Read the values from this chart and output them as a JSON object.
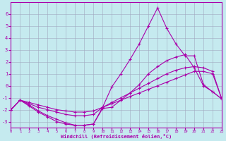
{
  "title": "",
  "xlabel": "Windchill (Refroidissement éolien,°C)",
  "ylabel": "",
  "bg_color": "#c5eaef",
  "grid_color": "#a0a8c0",
  "line_color": "#aa00aa",
  "xlim": [
    0,
    23
  ],
  "ylim": [
    -3.5,
    7.0
  ],
  "xticks": [
    0,
    1,
    2,
    3,
    4,
    5,
    6,
    7,
    8,
    9,
    10,
    11,
    12,
    13,
    14,
    15,
    16,
    17,
    18,
    19,
    20,
    21,
    22,
    23
  ],
  "yticks": [
    -3,
    -2,
    -1,
    0,
    1,
    2,
    3,
    4,
    5,
    6
  ],
  "line1_x": [
    0,
    1,
    2,
    3,
    4,
    5,
    6,
    7,
    8,
    9,
    10,
    11,
    12,
    13,
    14,
    15,
    16,
    17,
    18,
    19,
    20,
    21,
    22,
    23
  ],
  "line1_y": [
    -2.0,
    -1.2,
    -1.7,
    -2.2,
    -2.6,
    -3.0,
    -3.2,
    -3.3,
    -3.3,
    -3.2,
    -1.9,
    -1.8,
    -1.2,
    -0.6,
    0.1,
    1.0,
    1.6,
    2.1,
    2.4,
    2.6,
    1.5,
    0.0,
    -0.5,
    -1.1
  ],
  "line2_x": [
    0,
    1,
    2,
    3,
    4,
    5,
    6,
    7,
    8,
    9,
    10,
    11,
    12,
    13,
    14,
    15,
    16,
    17,
    18,
    19,
    20,
    21,
    22,
    23
  ],
  "line2_y": [
    -2.0,
    -1.2,
    -1.6,
    -2.1,
    -2.5,
    -2.8,
    -3.1,
    -3.3,
    -3.3,
    -3.2,
    -1.8,
    -0.1,
    1.0,
    2.2,
    3.5,
    5.0,
    6.5,
    4.8,
    3.5,
    2.5,
    2.5,
    0.1,
    -0.5,
    -1.1
  ],
  "line3_x": [
    0,
    1,
    2,
    3,
    4,
    5,
    6,
    7,
    8,
    9,
    10,
    11,
    12,
    13,
    14,
    15,
    16,
    17,
    18,
    19,
    20,
    21,
    22,
    23
  ],
  "line3_y": [
    -2.0,
    -1.2,
    -1.5,
    -1.8,
    -2.0,
    -2.2,
    -2.4,
    -2.5,
    -2.5,
    -2.4,
    -1.8,
    -1.4,
    -1.0,
    -0.6,
    -0.2,
    0.2,
    0.6,
    1.0,
    1.3,
    1.5,
    1.6,
    1.5,
    1.2,
    -1.1
  ],
  "line4_x": [
    0,
    1,
    2,
    3,
    4,
    5,
    6,
    7,
    8,
    9,
    10,
    11,
    12,
    13,
    14,
    15,
    16,
    17,
    18,
    19,
    20,
    21,
    22,
    23
  ],
  "line4_y": [
    -2.0,
    -1.2,
    -1.4,
    -1.6,
    -1.8,
    -2.0,
    -2.1,
    -2.2,
    -2.2,
    -2.1,
    -1.8,
    -1.5,
    -1.2,
    -0.9,
    -0.6,
    -0.3,
    0.0,
    0.3,
    0.6,
    0.9,
    1.2,
    1.2,
    1.0,
    -1.1
  ]
}
